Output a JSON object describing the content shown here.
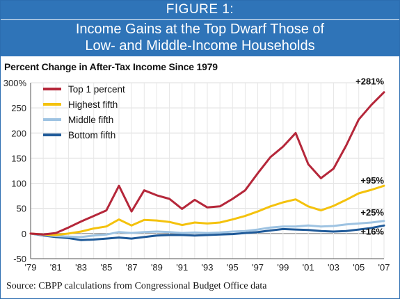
{
  "figure_label": "FIGURE 1:",
  "figure_title_line1": "Income Gains at the Top Dwarf Those of",
  "figure_title_line2": "Low- and Middle-Income Households",
  "source": "Source: CBPP calculations from Congressional Budget Office data",
  "colors": {
    "banner": "#2f74b8",
    "top1": "#b5273a",
    "highest": "#f4c20d",
    "middle": "#9ec3e2",
    "bottom": "#1f5a99"
  },
  "chart_data": {
    "type": "line",
    "title": "Percent Change in After-Tax Income Since 1979",
    "xlabel": "",
    "ylabel": "",
    "ylim": [
      -50,
      300
    ],
    "xlim": [
      1979,
      2007
    ],
    "yticks": [
      -50,
      0,
      50,
      100,
      150,
      200,
      250,
      300
    ],
    "ytick_labels": [
      "-50",
      "0",
      "50",
      "100",
      "150",
      "200",
      "250",
      "300%"
    ],
    "xticks": [
      1979,
      1981,
      1983,
      1985,
      1987,
      1989,
      1991,
      1993,
      1995,
      1997,
      1999,
      2001,
      2003,
      2005,
      2007
    ],
    "xtick_labels": [
      "'79",
      "'81",
      "'83",
      "'85",
      "'87",
      "'89",
      "'91",
      "'93",
      "'95",
      "'97",
      "'99",
      "'01",
      "'03",
      "'05",
      "'07"
    ],
    "grid": true,
    "legend_position": "top-left",
    "x": [
      1979,
      1980,
      1981,
      1982,
      1983,
      1984,
      1985,
      1986,
      1987,
      1988,
      1989,
      1990,
      1991,
      1992,
      1993,
      1994,
      1995,
      1996,
      1997,
      1998,
      1999,
      2000,
      2001,
      2002,
      2003,
      2004,
      2005,
      2006,
      2007
    ],
    "series": [
      {
        "name": "Top 1 percent",
        "color": "#b5273a",
        "end_label": "+281%",
        "values": [
          0,
          -2,
          1,
          12,
          24,
          35,
          46,
          95,
          44,
          86,
          76,
          69,
          49,
          67,
          52,
          54,
          69,
          86,
          120,
          152,
          173,
          200,
          138,
          110,
          129,
          175,
          227,
          256,
          281
        ]
      },
      {
        "name": "Highest fifth",
        "color": "#f4c20d",
        "end_label": "+95%",
        "values": [
          0,
          -2,
          -3,
          0,
          4,
          10,
          14,
          28,
          16,
          27,
          26,
          23,
          17,
          22,
          20,
          22,
          28,
          35,
          44,
          54,
          62,
          68,
          54,
          46,
          55,
          67,
          80,
          87,
          95
        ]
      },
      {
        "name": "Middle fifth",
        "color": "#9ec3e2",
        "end_label": "+25%",
        "values": [
          0,
          -3,
          -5,
          -6,
          -7,
          -4,
          -2,
          3,
          1,
          3,
          4,
          3,
          1,
          2,
          1,
          2,
          4,
          5,
          8,
          12,
          14,
          14,
          16,
          14,
          15,
          18,
          20,
          22,
          25
        ]
      },
      {
        "name": "Bottom fifth",
        "color": "#1f5a99",
        "end_label": "+16%",
        "values": [
          0,
          -4,
          -7,
          -9,
          -13,
          -12,
          -10,
          -8,
          -10,
          -7,
          -4,
          -3,
          -3,
          -4,
          -3,
          -2,
          -1,
          1,
          3,
          6,
          9,
          8,
          7,
          5,
          4,
          5,
          8,
          11,
          16
        ]
      }
    ]
  }
}
